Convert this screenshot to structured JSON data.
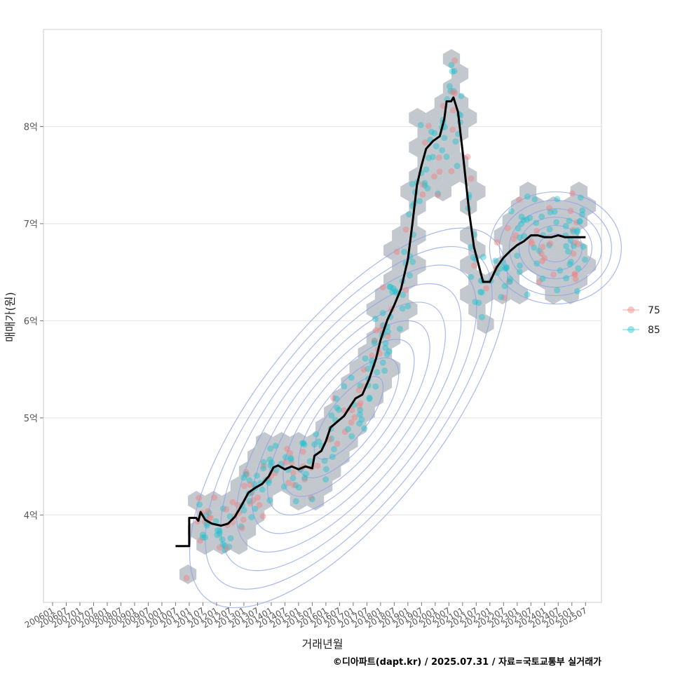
{
  "chart_data": {
    "type": "scatter",
    "title": "",
    "xlabel": "거래년월",
    "ylabel": "매매가(원)",
    "caption": "©디아파트(dapt.kr) / 2025.07.31 / 자료=국토교통부 실거래가",
    "x_ticks": [
      "200601",
      "200607",
      "200701",
      "200707",
      "200801",
      "200807",
      "200901",
      "200907",
      "201001",
      "201007",
      "201101",
      "201107",
      "201201",
      "201207",
      "201301",
      "201307",
      "201401",
      "201407",
      "201501",
      "201507",
      "201601",
      "201607",
      "201701",
      "201707",
      "201801",
      "201807",
      "201901",
      "201907",
      "202001",
      "202007",
      "202101",
      "202107",
      "202201",
      "202207",
      "202301",
      "202307",
      "202401",
      "202407",
      "202501",
      "202507"
    ],
    "y_ticks": [
      {
        "value": 400000000,
        "label": "4억"
      },
      {
        "value": 500000000,
        "label": "5억"
      },
      {
        "value": 600000000,
        "label": "6억"
      },
      {
        "value": 700000000,
        "label": "7억"
      },
      {
        "value": 800000000,
        "label": "8억"
      }
    ],
    "ylim": [
      310000000,
      900000000
    ],
    "xlim": [
      "2005-09",
      "2026-02"
    ],
    "grid": "horizontal",
    "legend_position": "right",
    "legend": [
      {
        "label": "75",
        "color": "#f08080"
      },
      {
        "label": "85",
        "color": "#20c0cc"
      }
    ],
    "colors": {
      "hexbin": "#b8bec6",
      "contour": "#8ea2e8",
      "trend_line": "#000000",
      "grid": "#e2e2e2",
      "panel_border": "#cccccc"
    },
    "trend_line": {
      "name": "",
      "points": [
        [
          "2010-07",
          368000000
        ],
        [
          "2011-01",
          368000000
        ],
        [
          "2011-01",
          397000000
        ],
        [
          "2011-04",
          397000000
        ],
        [
          "2011-05",
          394000000
        ],
        [
          "2011-06",
          403000000
        ],
        [
          "2011-08",
          395000000
        ],
        [
          "2011-11",
          391000000
        ],
        [
          "2012-03",
          389000000
        ],
        [
          "2012-06",
          391000000
        ],
        [
          "2012-09",
          398000000
        ],
        [
          "2012-12",
          410000000
        ],
        [
          "2013-03",
          423000000
        ],
        [
          "2013-06",
          428000000
        ],
        [
          "2013-09",
          432000000
        ],
        [
          "2013-12",
          440000000
        ],
        [
          "2014-02",
          449000000
        ],
        [
          "2014-04",
          451000000
        ],
        [
          "2014-07",
          447000000
        ],
        [
          "2014-10",
          450000000
        ],
        [
          "2015-01",
          447000000
        ],
        [
          "2015-04",
          450000000
        ],
        [
          "2015-07",
          448000000
        ],
        [
          "2015-08",
          461000000
        ],
        [
          "2015-11",
          466000000
        ],
        [
          "2016-01",
          476000000
        ],
        [
          "2016-03",
          490000000
        ],
        [
          "2016-06",
          496000000
        ],
        [
          "2016-09",
          502000000
        ],
        [
          "2016-12",
          513000000
        ],
        [
          "2017-02",
          520000000
        ],
        [
          "2017-05",
          524000000
        ],
        [
          "2017-08",
          540000000
        ],
        [
          "2017-11",
          561000000
        ],
        [
          "2018-01",
          580000000
        ],
        [
          "2018-04",
          601000000
        ],
        [
          "2018-07",
          616000000
        ],
        [
          "2018-10",
          633000000
        ],
        [
          "2019-01",
          663000000
        ],
        [
          "2019-03",
          700000000
        ],
        [
          "2019-05",
          740000000
        ],
        [
          "2019-07",
          760000000
        ],
        [
          "2019-09",
          777000000
        ],
        [
          "2019-12",
          785000000
        ],
        [
          "2020-03",
          790000000
        ],
        [
          "2020-05",
          808000000
        ],
        [
          "2020-06",
          826000000
        ],
        [
          "2020-08",
          826000000
        ],
        [
          "2020-09",
          830000000
        ],
        [
          "2020-11",
          815000000
        ],
        [
          "2021-01",
          775000000
        ],
        [
          "2021-04",
          710000000
        ],
        [
          "2021-06",
          676000000
        ],
        [
          "2021-08",
          658000000
        ],
        [
          "2021-10",
          640000000
        ],
        [
          "2022-01",
          640000000
        ],
        [
          "2022-04",
          655000000
        ],
        [
          "2022-07",
          665000000
        ],
        [
          "2022-10",
          672000000
        ],
        [
          "2023-01",
          678000000
        ],
        [
          "2023-04",
          682000000
        ],
        [
          "2023-07",
          688000000
        ],
        [
          "2023-10",
          688000000
        ],
        [
          "2024-01",
          686000000
        ],
        [
          "2024-04",
          686000000
        ],
        [
          "2024-07",
          688000000
        ],
        [
          "2024-10",
          686000000
        ],
        [
          "2025-01",
          686000000
        ],
        [
          "2025-04",
          686000000
        ],
        [
          "2025-07",
          686000000
        ]
      ]
    },
    "density_center": {
      "x": "2016-11",
      "y": 500000000
    }
  }
}
